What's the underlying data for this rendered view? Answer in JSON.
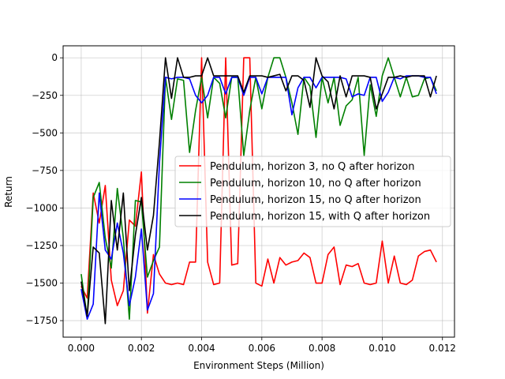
{
  "chart_data": {
    "type": "line",
    "title": "",
    "xlabel": "Environment Steps (Million)",
    "ylabel": "Return",
    "xlim": [
      -0.0006,
      0.0124
    ],
    "ylim": [
      -1860,
      80
    ],
    "grid": true,
    "legend_position": "center-right",
    "xticks": [
      0.0,
      0.002,
      0.004,
      0.006,
      0.008,
      0.01,
      0.012
    ],
    "xtick_labels": [
      "0.000",
      "0.002",
      "0.004",
      "0.006",
      "0.008",
      "0.010",
      "0.012"
    ],
    "yticks": [
      0,
      -250,
      -500,
      -750,
      -1000,
      -1250,
      -1500,
      -1750
    ],
    "ytick_labels": [
      "0",
      "−250",
      "−500",
      "−750",
      "−1000",
      "−1250",
      "−1500",
      "−1750"
    ],
    "x": [
      0.0,
      0.0002,
      0.0004,
      0.0006,
      0.0008,
      0.001,
      0.0012,
      0.0014,
      0.0016,
      0.0018,
      0.002,
      0.0022,
      0.0024,
      0.0026,
      0.0028,
      0.003,
      0.0032,
      0.0034,
      0.0036,
      0.0038,
      0.004,
      0.0042,
      0.0044,
      0.0046,
      0.0048,
      0.005,
      0.0052,
      0.0054,
      0.0056,
      0.0058,
      0.006,
      0.0062,
      0.0064,
      0.0066,
      0.0068,
      0.007,
      0.0072,
      0.0074,
      0.0076,
      0.0078,
      0.008,
      0.0082,
      0.0084,
      0.0086,
      0.0088,
      0.009,
      0.0092,
      0.0094,
      0.0096,
      0.0098,
      0.01,
      0.0102,
      0.0104,
      0.0106,
      0.0108,
      0.011,
      0.0112,
      0.0114,
      0.0116,
      0.0118
    ],
    "series": [
      {
        "name": "Pendulum, horizon 3, no Q after horizon",
        "color": "#ff0000",
        "values": [
          -1520,
          -1600,
          -900,
          -1100,
          -850,
          -1480,
          -1650,
          -1550,
          -1080,
          -1120,
          -760,
          -1700,
          -1310,
          -1440,
          -1500,
          -1510,
          -1500,
          -1510,
          -1360,
          -1360,
          0,
          -1360,
          -1510,
          -1500,
          0,
          -1380,
          -1370,
          0,
          0,
          -1500,
          -1520,
          -1340,
          -1500,
          -1330,
          -1380,
          -1360,
          -1350,
          -1300,
          -1330,
          -1500,
          -1500,
          -1310,
          -1260,
          -1510,
          -1380,
          -1390,
          -1370,
          -1500,
          -1510,
          -1500,
          -1220,
          -1500,
          -1320,
          -1500,
          -1510,
          -1480,
          -1320,
          -1290,
          -1280,
          -1360
        ]
      },
      {
        "name": "Pendulum, horizon 10, no Q after horizon",
        "color": "#008000",
        "values": [
          -1440,
          -1730,
          -930,
          -830,
          -1200,
          -1400,
          -870,
          -1200,
          -1740,
          -950,
          -960,
          -1460,
          -1350,
          -1260,
          -130,
          -410,
          -140,
          -150,
          -630,
          -350,
          -130,
          -400,
          -130,
          -170,
          -400,
          -130,
          -130,
          -650,
          -350,
          -130,
          -340,
          -130,
          0,
          0,
          -130,
          -300,
          -510,
          -130,
          -190,
          -530,
          -130,
          -300,
          -130,
          -450,
          -320,
          -280,
          -130,
          -650,
          -180,
          -390,
          -120,
          0,
          -130,
          -260,
          -130,
          -260,
          -250,
          -140,
          -130,
          -220
        ]
      },
      {
        "name": "Pendulum, horizon 15, no Q after horizon",
        "color": "#0000ff",
        "values": [
          -1540,
          -1740,
          -1640,
          -900,
          -1280,
          -1340,
          -1100,
          -1300,
          -1650,
          -1460,
          -1140,
          -1680,
          -1570,
          -700,
          -130,
          -140,
          -130,
          -130,
          -140,
          -250,
          -300,
          -250,
          -130,
          -130,
          -240,
          -130,
          -130,
          -250,
          -130,
          -130,
          -240,
          -130,
          -130,
          -130,
          -130,
          -380,
          -200,
          -130,
          -130,
          -200,
          -130,
          -130,
          -130,
          -130,
          -140,
          -260,
          -240,
          -250,
          -130,
          -130,
          -290,
          -230,
          -130,
          -140,
          -120,
          -120,
          -120,
          -130,
          -130,
          -240
        ]
      },
      {
        "name": "Pendulum, horizon 15, with Q after horizon",
        "color": "#000000",
        "values": [
          -1490,
          -1720,
          -1260,
          -1300,
          -1770,
          -950,
          -1280,
          -900,
          -1550,
          -1180,
          -930,
          -1280,
          -1050,
          -560,
          0,
          -270,
          0,
          -130,
          -130,
          -120,
          -120,
          0,
          -120,
          -120,
          -120,
          -120,
          -120,
          -230,
          -120,
          -120,
          -120,
          -130,
          -120,
          -110,
          -220,
          -120,
          -120,
          -150,
          -330,
          0,
          -120,
          -160,
          -340,
          -120,
          -260,
          -120,
          -120,
          -120,
          -130,
          -340,
          -240,
          -130,
          -130,
          -120,
          -130,
          -120,
          -120,
          -120,
          -260,
          -120
        ]
      }
    ]
  }
}
